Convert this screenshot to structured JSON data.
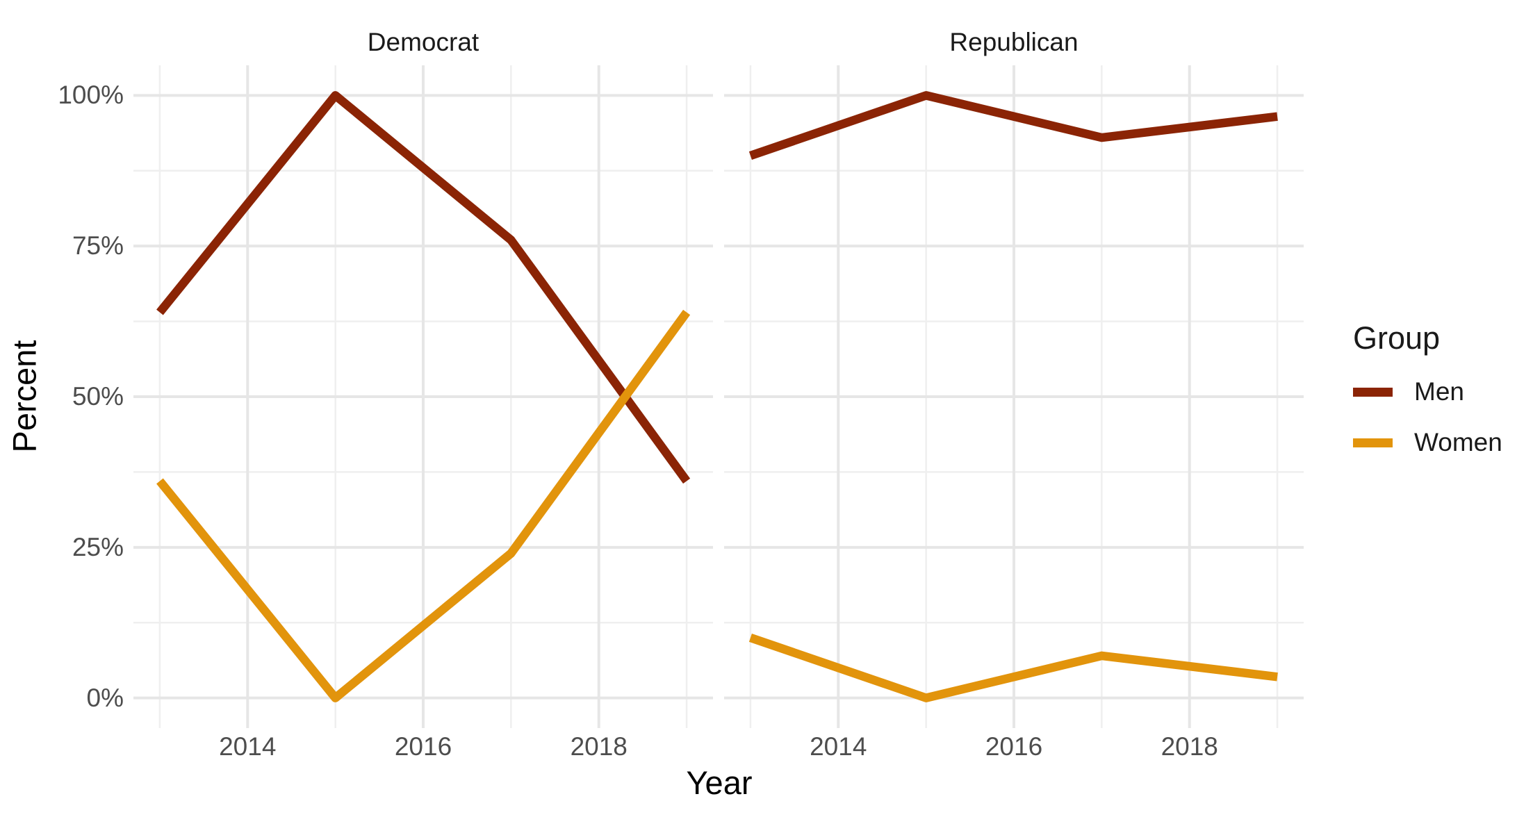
{
  "chart_data": {
    "type": "line",
    "title": "",
    "xlabel": "Year",
    "ylabel": "Percent",
    "facets": [
      {
        "label": "Democrat",
        "series": [
          {
            "name": "Men",
            "x": [
              2013,
              2015,
              2017,
              2019
            ],
            "values": [
              64,
              100,
              76,
              36
            ]
          },
          {
            "name": "Women",
            "x": [
              2013,
              2015,
              2017,
              2019
            ],
            "values": [
              36,
              0,
              24,
              64
            ]
          }
        ]
      },
      {
        "label": "Republican",
        "series": [
          {
            "name": "Men",
            "x": [
              2013,
              2015,
              2017,
              2019
            ],
            "values": [
              90,
              100,
              93,
              96.5
            ]
          },
          {
            "name": "Women",
            "x": [
              2013,
              2015,
              2017,
              2019
            ],
            "values": [
              10,
              0,
              7,
              3.5
            ]
          }
        ]
      }
    ],
    "x_ticks": {
      "values": [
        2014,
        2016,
        2018
      ],
      "labels": [
        "2014",
        "2016",
        "2018"
      ]
    },
    "x_minor": [
      2013,
      2015,
      2017,
      2019
    ],
    "y_ticks": {
      "values": [
        0,
        25,
        50,
        75,
        100
      ],
      "labels": [
        "0%",
        "25%",
        "50%",
        "75%",
        "100%"
      ]
    },
    "y_minor": [
      12.5,
      37.5,
      62.5,
      87.5
    ],
    "xlim": [
      2012.7,
      2019.3
    ],
    "ylim": [
      -5,
      105
    ],
    "grid": "major and minor, no axis lines, no ticks",
    "legend_position": "right"
  },
  "legend": {
    "title": "Group",
    "items": [
      {
        "label": "Men",
        "color": "#8B2405"
      },
      {
        "label": "Women",
        "color": "#E2940C"
      }
    ]
  },
  "colors": {
    "background": "#FFFFFF",
    "grid_major": "#E6E6E6",
    "grid_minor": "#EFEFEF",
    "tick_label": "#4D4D4D",
    "text": "#1A1A1A",
    "men_line": "#8B2405",
    "women_line": "#E2940C"
  }
}
